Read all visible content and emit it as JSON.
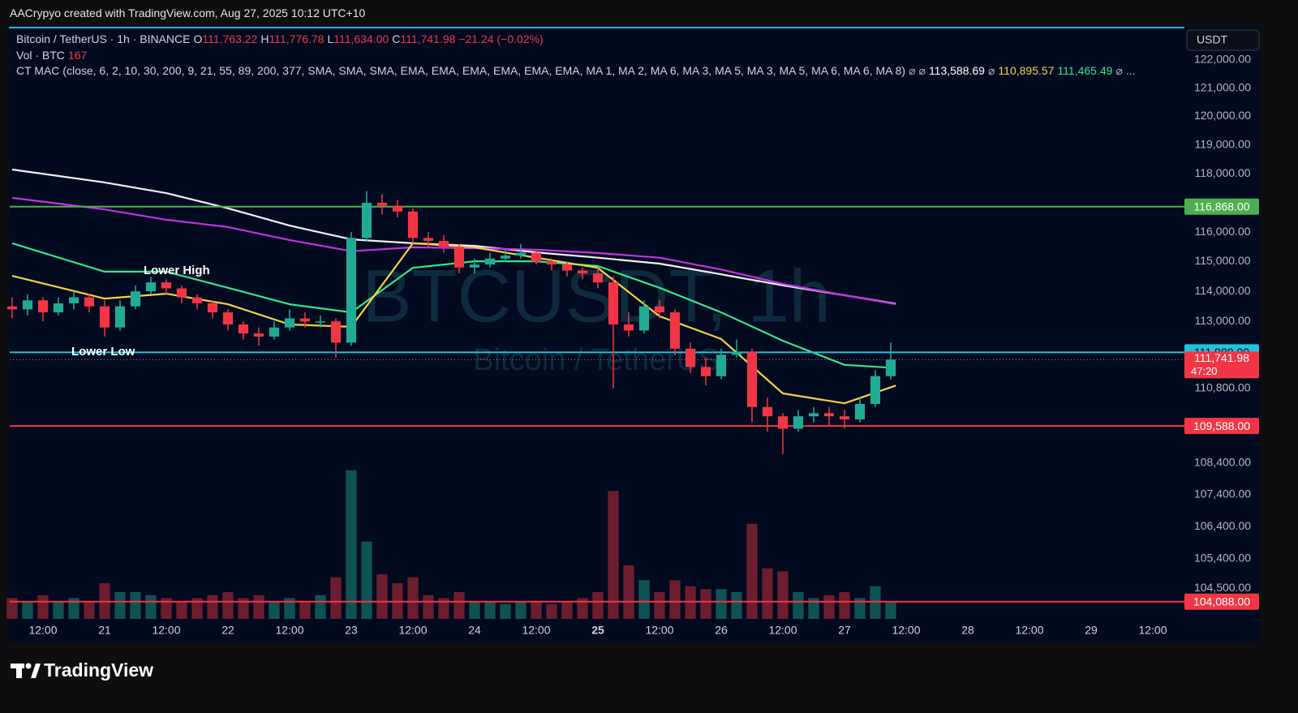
{
  "header": {
    "credit": "AACrypyo created with TradingView.com, Aug 27, 2025 10:12 UTC+10",
    "logo": "TradingView"
  },
  "chart_data": {
    "type": "candlestick",
    "currency": "USDT",
    "legend": {
      "symbol": "Bitcoin / TetherUS · 1h · BINANCE",
      "ohlc": [
        {
          "key": "O",
          "value": "111,763.22"
        },
        {
          "key": "H",
          "value": "111,776.78"
        },
        {
          "key": "L",
          "value": "111,634.00"
        },
        {
          "key": "C",
          "value": "111,741.98"
        }
      ],
      "change": "−21.24 (−0.02%)",
      "volume_name": "Vol · BTC",
      "volume_value": "167",
      "indicator": "CT MAC (close, 6, 2, 10, 30, 200, 9, 21, 55, 89, 200, 377, SMA, SMA, SMA, EMA, EMA, EMA, EMA, EMA, EMA, MA 1, MA 2, MA 6, MA 3, MA 5, MA 3, MA 5, MA 6, MA 6, MA 8)",
      "indicator_values": [
        {
          "text": "⌀",
          "color": "#b2b5be"
        },
        {
          "text": "⌀",
          "color": "#b2b5be"
        },
        {
          "text": "113,588.69",
          "color": "#ffffff"
        },
        {
          "text": "⌀",
          "color": "#b2b5be"
        },
        {
          "text": "110,895.57",
          "color": "#f5d142"
        },
        {
          "text": "111,465.49",
          "color": "#2ee88a"
        },
        {
          "text": "⌀",
          "color": "#b2b5be"
        },
        {
          "text": "...",
          "color": "#b2b5be"
        }
      ]
    },
    "watermark": {
      "title": "BTCUSDT, 1h",
      "subtitle": "Bitcoin / TetherUS"
    },
    "annotations": [
      "Lower High",
      "Lower Low"
    ],
    "up_color": "#22ab94",
    "down_color": "#f23645",
    "log_scale": true,
    "xlim": [
      -18.47,
      210.16
    ],
    "xticks": [
      {
        "value": -12,
        "label": "12:00"
      },
      {
        "value": 0,
        "label": "21"
      },
      {
        "value": 12,
        "label": "12:00"
      },
      {
        "value": 24,
        "label": "22"
      },
      {
        "value": 36,
        "label": "12:00"
      },
      {
        "value": 48,
        "label": "23"
      },
      {
        "value": 60,
        "label": "12:00"
      },
      {
        "value": 72,
        "label": "24"
      },
      {
        "value": 84,
        "label": "12:00"
      },
      {
        "value": 96,
        "label": "25",
        "bold": true
      },
      {
        "value": 108,
        "label": "12:00"
      },
      {
        "value": 120,
        "label": "26"
      },
      {
        "value": 132,
        "label": "12:00"
      },
      {
        "value": 144,
        "label": "27"
      },
      {
        "value": 156,
        "label": "12:00"
      },
      {
        "value": 168,
        "label": "28"
      },
      {
        "value": 180,
        "label": "12:00"
      },
      {
        "value": 192,
        "label": "29"
      },
      {
        "value": 204,
        "label": "12:00"
      }
    ],
    "ylim": [
      103562,
      123195
    ],
    "yticks": [
      {
        "value": 122000,
        "label": "122,000.00"
      },
      {
        "value": 121000,
        "label": "121,000.00"
      },
      {
        "value": 120000,
        "label": "120,000.00"
      },
      {
        "value": 119000,
        "label": "119,000.00"
      },
      {
        "value": 118000,
        "label": "118,000.00"
      },
      {
        "value": 116000,
        "label": "116,000.00"
      },
      {
        "value": 115000,
        "label": "115,000.00"
      },
      {
        "value": 114000,
        "label": "114,000.00"
      },
      {
        "value": 113000,
        "label": "113,000.00"
      },
      {
        "value": 110800,
        "label": "110,800.00"
      },
      {
        "value": 108400,
        "label": "108,400.00"
      },
      {
        "value": 107400,
        "label": "107,400.00"
      },
      {
        "value": 106400,
        "label": "106,400.00"
      },
      {
        "value": 105400,
        "label": "105,400.00"
      },
      {
        "value": 104500,
        "label": "104,500.00"
      }
    ],
    "x": [
      -18,
      -15,
      -12,
      -9,
      -6,
      -3,
      0,
      3,
      6,
      9,
      12,
      15,
      18,
      21,
      24,
      27,
      30,
      33,
      36,
      39,
      42,
      45,
      48,
      51,
      54,
      57,
      60,
      63,
      66,
      69,
      72,
      75,
      78,
      81,
      84,
      87,
      90,
      93,
      96,
      99,
      102,
      105,
      108,
      111,
      114,
      117,
      120,
      123,
      126,
      129,
      132,
      135,
      138,
      141,
      144,
      147,
      150,
      153
    ],
    "open": [
      113500,
      113400,
      113700,
      113300,
      113600,
      113800,
      113500,
      112800,
      113500,
      114000,
      114300,
      114100,
      113800,
      113600,
      113300,
      112900,
      112600,
      112500,
      112800,
      113100,
      113000,
      113000,
      112300,
      115800,
      117000,
      116900,
      116700,
      115800,
      115700,
      115500,
      114800,
      114900,
      115100,
      115200,
      115300,
      115000,
      114900,
      114700,
      114600,
      114300,
      112900,
      112700,
      113500,
      113300,
      112100,
      111500,
      111200,
      111900,
      112000,
      110200,
      109900,
      109500,
      109900,
      110000,
      109900,
      109800,
      110300,
      111200
    ],
    "high": [
      113800,
      113900,
      113800,
      113800,
      114000,
      113900,
      113700,
      113700,
      114200,
      114500,
      114400,
      114200,
      113900,
      113700,
      113400,
      113000,
      112800,
      113000,
      113400,
      113300,
      113200,
      113100,
      116000,
      117400,
      117300,
      117100,
      116800,
      116000,
      115900,
      115600,
      115100,
      115300,
      115400,
      115600,
      115400,
      115100,
      115000,
      114800,
      114800,
      114500,
      113300,
      113700,
      113700,
      113400,
      112300,
      111800,
      112100,
      112400,
      112100,
      110500,
      110000,
      110100,
      110200,
      110200,
      110100,
      110500,
      111400,
      112300
    ],
    "low": [
      113100,
      113200,
      113000,
      113200,
      113400,
      113300,
      112500,
      112700,
      113400,
      113900,
      113900,
      113600,
      113400,
      113100,
      112700,
      112400,
      112200,
      112400,
      112700,
      112800,
      112800,
      111800,
      112200,
      115700,
      116600,
      116500,
      115600,
      115500,
      115300,
      114600,
      114600,
      114800,
      115000,
      115100,
      114900,
      114700,
      114500,
      114400,
      114100,
      110800,
      112500,
      112600,
      113100,
      111900,
      111300,
      110900,
      111100,
      111800,
      109700,
      109400,
      108700,
      109400,
      109700,
      109600,
      109500,
      109700,
      110200,
      111100
    ],
    "close": [
      113400,
      113700,
      113300,
      113600,
      113800,
      113500,
      112800,
      113500,
      114000,
      114300,
      114100,
      113800,
      113600,
      113300,
      112900,
      112600,
      112500,
      112800,
      113100,
      113000,
      113000,
      112300,
      115800,
      117000,
      116900,
      116700,
      115800,
      115700,
      115500,
      114800,
      114900,
      115100,
      115200,
      115300,
      115000,
      114900,
      114700,
      114600,
      114300,
      112900,
      112700,
      113500,
      113300,
      112100,
      111500,
      111200,
      111900,
      112000,
      110200,
      109900,
      109500,
      109900,
      110000,
      109900,
      109800,
      110300,
      111200,
      111742
    ],
    "volume": [
      700,
      600,
      800,
      600,
      700,
      600,
      1200,
      900,
      900,
      800,
      700,
      600,
      700,
      800,
      900,
      700,
      800,
      600,
      700,
      600,
      800,
      1400,
      5000,
      2600,
      1500,
      1200,
      1400,
      800,
      700,
      900,
      600,
      600,
      500,
      600,
      600,
      500,
      600,
      700,
      900,
      4300,
      1800,
      1300,
      900,
      1300,
      1100,
      1000,
      1000,
      900,
      3200,
      1700,
      1600,
      900,
      700,
      800,
      900,
      700,
      1100,
      600
    ],
    "volume_lim": [
      0,
      6000
    ],
    "moving_averages": [
      {
        "color": "#f0f0f0",
        "x": [
          -18,
          0,
          12,
          24,
          36,
          48,
          60,
          72,
          84,
          96,
          108,
          120,
          132,
          144,
          154
        ],
        "values": [
          118145,
          117700,
          117330,
          116810,
          116220,
          115750,
          115620,
          115530,
          115310,
          115130,
          114930,
          114570,
          114200,
          113870,
          113588.69
        ]
      },
      {
        "color": "#c531e0",
        "x": [
          -18,
          0,
          12,
          24,
          36,
          48,
          60,
          72,
          84,
          96,
          108,
          120,
          132,
          144,
          154
        ],
        "values": [
          117170,
          116770,
          116420,
          116170,
          115730,
          115350,
          115480,
          115450,
          115400,
          115290,
          115130,
          114730,
          114250,
          113870,
          113570
        ]
      },
      {
        "color": "#2ee88a",
        "x": [
          -18,
          0,
          12,
          24,
          36,
          48,
          60,
          72,
          84,
          96,
          108,
          120,
          132,
          144,
          154
        ],
        "values": [
          115620,
          114660,
          114660,
          114120,
          113570,
          113300,
          114790,
          115010,
          115010,
          114850,
          114120,
          113300,
          112360,
          111570,
          111465.49
        ]
      },
      {
        "color": "#f5d142",
        "x": [
          -18,
          0,
          12,
          24,
          36,
          48,
          60,
          72,
          84,
          96,
          108,
          120,
          132,
          144,
          154
        ],
        "values": [
          114520,
          113760,
          113920,
          113570,
          112900,
          112820,
          115620,
          115480,
          115130,
          114790,
          113170,
          112420,
          110640,
          110320,
          110895.57
        ]
      }
    ],
    "levels": [
      {
        "value": 116868,
        "label": "116,868.00",
        "color": "#4caf50",
        "text_color": "#ffffff"
      },
      {
        "value": 111980,
        "label": "111,980.00",
        "color": "#22c3dd",
        "text_color": "#0b0b0b"
      },
      {
        "value": 109588,
        "label": "109,588.00",
        "color": "#f23645",
        "text_color": "#ffffff"
      },
      {
        "value": 104088,
        "label": "104,088.00",
        "color": "#f23645",
        "text_color": "#ffffff"
      }
    ],
    "last_price": {
      "value": 111741.98,
      "label": "111,741.98",
      "countdown": "47:20",
      "color": "#f23645"
    }
  }
}
